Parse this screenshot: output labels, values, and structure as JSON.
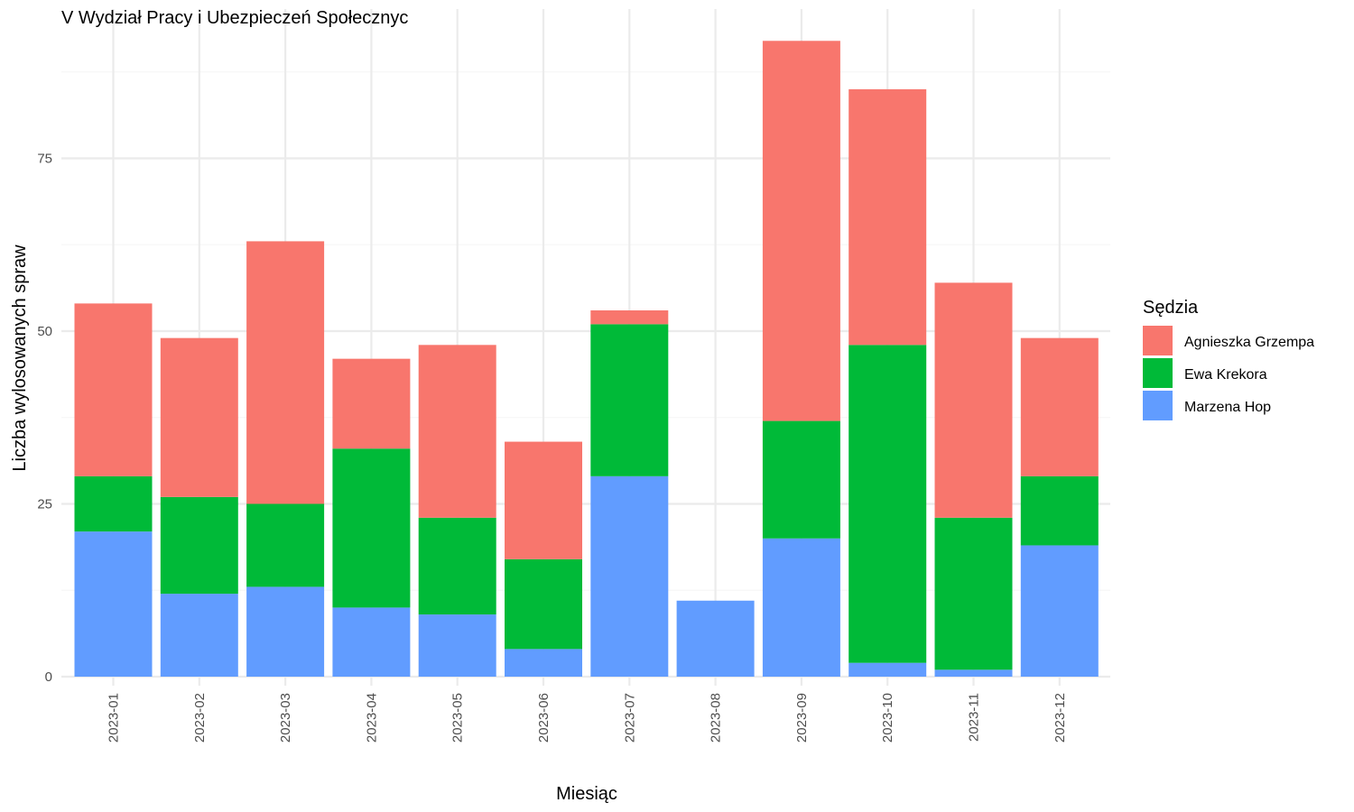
{
  "chart_data": {
    "type": "bar",
    "stacked": true,
    "title": "V Wydział Pracy i Ubezpieczeń Społecznyc",
    "xlabel": "Miesiąc",
    "ylabel": "Liczba wylosowanych spraw",
    "categories": [
      "2023-01",
      "2023-02",
      "2023-03",
      "2023-04",
      "2023-05",
      "2023-06",
      "2023-07",
      "2023-08",
      "2023-09",
      "2023-10",
      "2023-11",
      "2023-12"
    ],
    "series": [
      {
        "name": "Marzena Hop",
        "color": "#619CFF",
        "values": [
          21,
          12,
          13,
          10,
          9,
          4,
          29,
          11,
          20,
          2,
          1,
          19
        ]
      },
      {
        "name": "Ewa Krekora",
        "color": "#00BA38",
        "values": [
          8,
          14,
          12,
          23,
          14,
          13,
          22,
          0,
          17,
          46,
          22,
          10
        ]
      },
      {
        "name": "Agnieszka Grzempa",
        "color": "#F8766D",
        "values": [
          25,
          23,
          38,
          13,
          25,
          17,
          2,
          0,
          55,
          37,
          34,
          20
        ]
      }
    ],
    "ylim": [
      0,
      95
    ],
    "yticks": [
      0,
      25,
      50,
      75
    ],
    "grid": true,
    "legend": {
      "title": "Sędzia",
      "placement": "right",
      "items": [
        "Agnieszka Grzempa",
        "Ewa Krekora",
        "Marzena Hop"
      ]
    }
  }
}
